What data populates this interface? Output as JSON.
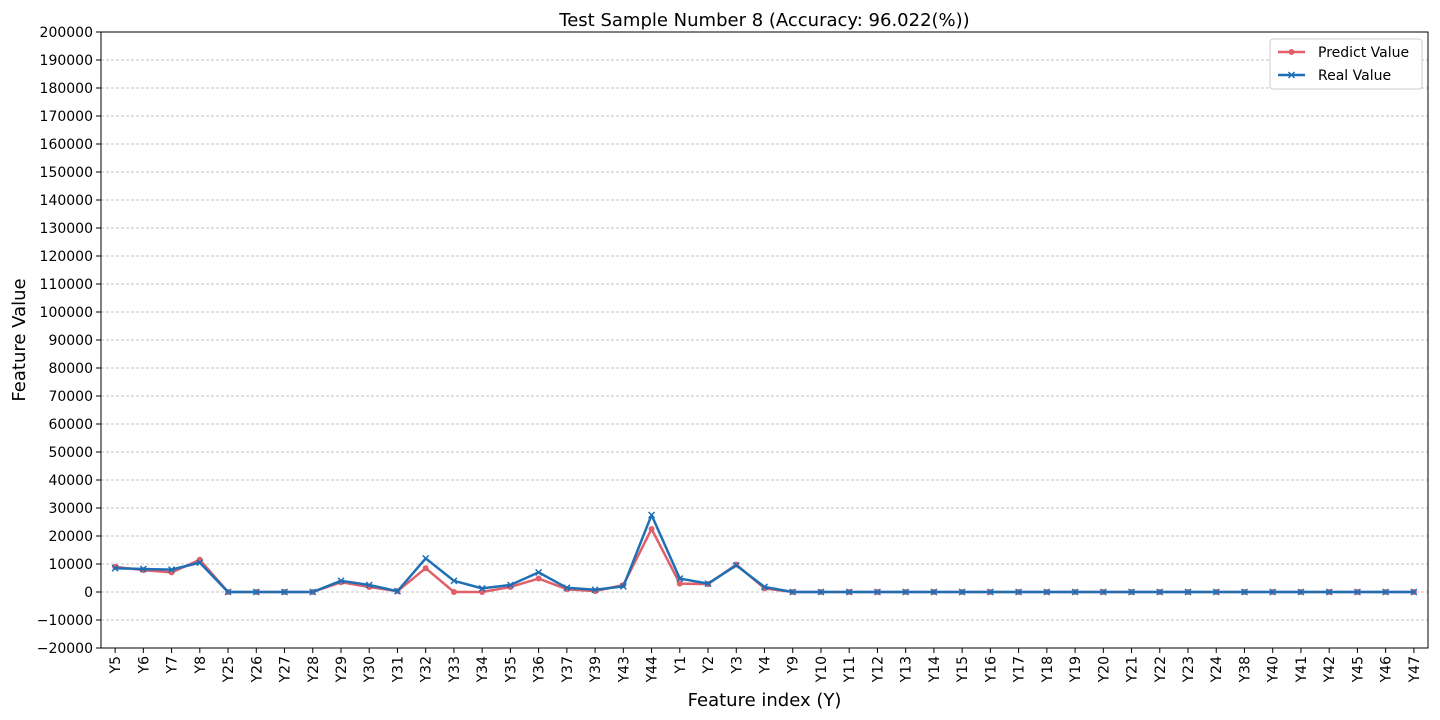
{
  "chart_data": {
    "type": "line",
    "title": "Test Sample Number 8 (Accuracy: 96.022(%))",
    "xlabel": "Feature index (Y)",
    "ylabel": "Feature Value",
    "ylim": [
      -20000,
      200000
    ],
    "ytick_step": 10000,
    "grid": "horizontal-dashed",
    "legend": "top-right",
    "categories": [
      "Y5",
      "Y6",
      "Y7",
      "Y8",
      "Y25",
      "Y26",
      "Y27",
      "Y28",
      "Y29",
      "Y30",
      "Y31",
      "Y32",
      "Y33",
      "Y34",
      "Y35",
      "Y36",
      "Y37",
      "Y39",
      "Y43",
      "Y44",
      "Y1",
      "Y2",
      "Y3",
      "Y4",
      "Y9",
      "Y10",
      "Y11",
      "Y12",
      "Y13",
      "Y14",
      "Y15",
      "Y16",
      "Y17",
      "Y18",
      "Y19",
      "Y20",
      "Y21",
      "Y22",
      "Y23",
      "Y24",
      "Y38",
      "Y40",
      "Y41",
      "Y42",
      "Y45",
      "Y46",
      "Y47"
    ],
    "series": [
      {
        "name": "Predict Value",
        "color": "#e0606a",
        "marker": "circle",
        "values": [
          9000,
          7800,
          7000,
          11500,
          0,
          0,
          0,
          0,
          3500,
          1800,
          300,
          8500,
          0,
          0,
          1800,
          4800,
          1000,
          300,
          2500,
          22500,
          3000,
          2800,
          9800,
          1300,
          0,
          0,
          0,
          0,
          0,
          0,
          0,
          0,
          0,
          0,
          0,
          0,
          0,
          0,
          0,
          0,
          0,
          0,
          0,
          0,
          0,
          0,
          0
        ]
      },
      {
        "name": "Real Value",
        "color": "#1f6fb4",
        "marker": "x",
        "values": [
          8500,
          8200,
          8000,
          10500,
          0,
          0,
          0,
          0,
          4000,
          2500,
          300,
          12000,
          4000,
          1300,
          2500,
          7000,
          1500,
          800,
          2000,
          27500,
          4800,
          3000,
          9500,
          1800,
          0,
          0,
          0,
          0,
          0,
          0,
          0,
          0,
          0,
          0,
          0,
          0,
          0,
          0,
          0,
          0,
          0,
          0,
          0,
          0,
          0,
          0,
          0
        ]
      }
    ]
  }
}
